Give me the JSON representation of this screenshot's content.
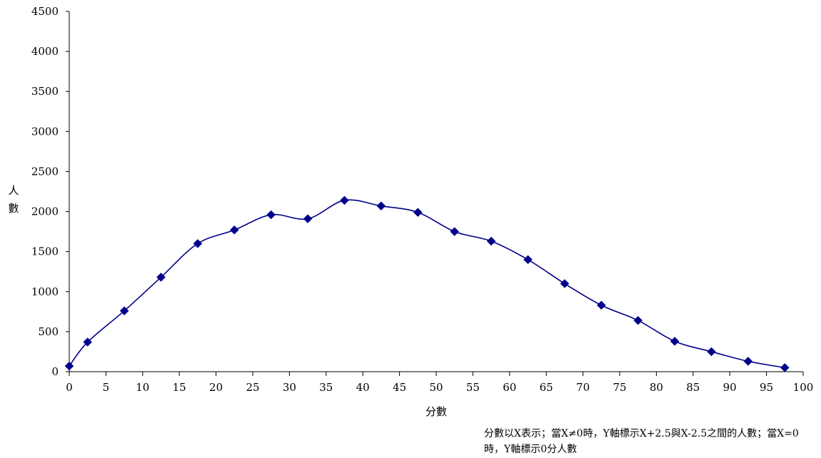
{
  "chart_data": {
    "type": "line",
    "title": "",
    "xlabel": "分數",
    "ylabel": "人數",
    "xlim": [
      0,
      100
    ],
    "ylim": [
      0,
      4500
    ],
    "x_ticks": [
      0,
      5,
      10,
      15,
      20,
      25,
      30,
      35,
      40,
      45,
      50,
      55,
      60,
      65,
      70,
      75,
      80,
      85,
      90,
      95,
      100
    ],
    "y_ticks": [
      0,
      500,
      1000,
      1500,
      2000,
      2500,
      3000,
      3500,
      4000,
      4500
    ],
    "grid": false,
    "legend": "none",
    "smooth": true,
    "marker": "diamond",
    "color": "#00008B",
    "series": [
      {
        "x": [
          0,
          2.5,
          7.5,
          12.5,
          17.5,
          22.5,
          27.5,
          32.5,
          37.5,
          42.5,
          47.5,
          52.5,
          57.5,
          62.5,
          67.5,
          72.5,
          77.5,
          82.5,
          87.5,
          92.5,
          97.5
        ],
        "values": [
          70,
          370,
          760,
          1180,
          1600,
          1770,
          1960,
          1910,
          2140,
          2070,
          1990,
          1750,
          1630,
          1400,
          1100,
          830,
          640,
          380,
          250,
          130,
          50
        ]
      }
    ],
    "note": "分數以X表示；當X≠0時，Y軸標示X+2.5與X-2.5之間的人數；當X=0時，Y軸標示0分人數"
  }
}
